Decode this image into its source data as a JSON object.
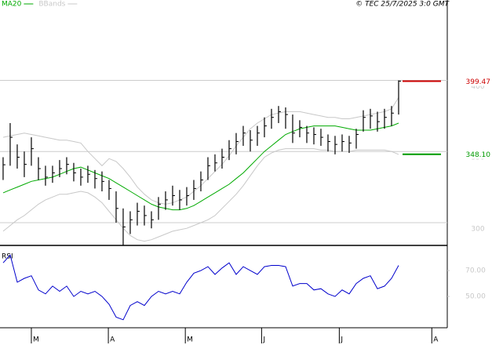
{
  "chart_data": [
    {
      "type": "ohlc",
      "source": "© TEC 25/7/2025 3:0 GMT",
      "xlim": [
        -0.44,
        62.89
      ],
      "ylim": [
        284,
        456.5
      ],
      "yticks": [
        300,
        350,
        400
      ],
      "grid": true,
      "ohlc": {
        "color": "#000000",
        "high": [
          346,
          370,
          355,
          350,
          360,
          346,
          340,
          340,
          344,
          346,
          342,
          338,
          340,
          337,
          336,
          330,
          322,
          310,
          308,
          314,
          312,
          308,
          318,
          322,
          326,
          323,
          325,
          330,
          336,
          346,
          348,
          352,
          358,
          363,
          368,
          365,
          368,
          374,
          380,
          382,
          381,
          376,
          372,
          368,
          367,
          366,
          362,
          361,
          362,
          361,
          366,
          379,
          380,
          378,
          380,
          382,
          400
        ],
        "low": [
          330,
          340,
          338,
          332,
          340,
          330,
          326,
          328,
          332,
          334,
          329,
          326,
          328,
          324,
          322,
          316,
          300,
          284,
          292,
          298,
          298,
          296,
          302,
          309,
          312,
          309,
          312,
          316,
          322,
          330,
          336,
          338,
          344,
          348,
          354,
          350,
          354,
          360,
          366,
          370,
          366,
          356,
          360,
          356,
          355,
          354,
          350,
          348,
          350,
          349,
          352,
          364,
          366,
          364,
          366,
          368,
          376
        ],
        "close": [
          340.7,
          360,
          346,
          341,
          352,
          338,
          332,
          335,
          338,
          341,
          335,
          332,
          334,
          331,
          329,
          324,
          310,
          297,
          302,
          308,
          305,
          302,
          313,
          316,
          319,
          316,
          319,
          324,
          330,
          340,
          342,
          346,
          352,
          357,
          363,
          358,
          363,
          368,
          374,
          378,
          376,
          363,
          367,
          363,
          362,
          360,
          357,
          355,
          357,
          356,
          362,
          374,
          375,
          371,
          374,
          377,
          399.47
        ]
      },
      "series": [
        {
          "name": "MA20",
          "color": "#00aa00",
          "values": [
            321,
            323,
            325,
            327,
            329,
            330,
            331,
            332,
            334,
            336,
            338,
            339,
            337,
            335,
            333,
            331,
            328,
            325,
            322,
            319,
            316,
            313,
            311,
            310,
            309,
            309,
            310,
            312,
            315,
            318,
            321,
            324,
            327,
            331,
            335,
            340,
            345,
            350,
            354,
            358,
            362,
            364,
            366,
            367,
            368,
            368,
            368,
            368,
            367,
            366,
            365,
            365,
            365,
            366,
            367,
            368,
            370
          ]
        },
        {
          "name": "BBands",
          "color": "#c8c8c8",
          "upper": [
            360,
            361,
            362,
            363,
            362,
            361,
            360,
            359,
            358,
            358,
            357,
            356,
            350,
            345,
            340,
            345,
            343,
            338,
            332,
            325,
            320,
            316,
            314,
            313,
            314,
            316,
            318,
            322,
            326,
            331,
            336,
            341,
            347,
            354,
            360,
            366,
            370,
            373,
            376,
            377,
            378,
            378,
            378,
            377,
            376,
            375,
            374,
            374,
            373,
            373,
            374,
            375,
            376,
            377,
            378,
            380,
            388
          ],
          "lower": [
            294,
            298,
            302,
            305,
            309,
            313,
            316,
            318,
            320,
            320,
            321,
            322,
            321,
            318,
            314,
            308,
            302,
            296,
            291,
            288,
            287,
            288,
            290,
            292,
            294,
            295,
            296,
            298,
            300,
            302,
            305,
            310,
            315,
            320,
            326,
            333,
            340,
            346,
            349,
            351,
            352,
            352,
            352,
            352,
            352,
            351,
            351,
            350,
            350,
            350,
            351,
            351,
            351,
            351,
            351,
            350,
            348
          ]
        }
      ],
      "levels": [
        {
          "value": 399.47,
          "label": "399.47",
          "color": "#cc0000"
        },
        {
          "value": 348.1,
          "label": "348.10",
          "color": "#009900"
        }
      ]
    },
    {
      "type": "line",
      "title": "RSI",
      "color": "#0000cc",
      "xlim": [
        -0.44,
        62.89
      ],
      "ylim": [
        25.8,
        86.4
      ],
      "yticks": [
        {
          "value": 70,
          "label": "70.00"
        },
        {
          "value": 50,
          "label": "50.00"
        }
      ],
      "xticks": [
        {
          "value": 4,
          "label": "M"
        },
        {
          "value": 14.9,
          "label": "A"
        },
        {
          "value": 25.8,
          "label": "M"
        },
        {
          "value": 36.6,
          "label": "J"
        },
        {
          "value": 47.6,
          "label": "J"
        },
        {
          "value": 60.7,
          "label": "A"
        }
      ],
      "values": [
        76,
        82,
        61,
        64,
        66,
        55,
        52,
        58,
        54,
        58,
        50,
        54,
        52,
        54,
        50,
        44,
        34,
        32,
        43,
        46,
        43,
        50,
        54,
        52,
        54,
        52,
        61,
        68,
        70,
        73,
        67,
        72,
        76,
        67,
        73,
        70,
        67,
        73,
        74,
        74,
        73,
        58,
        60,
        60,
        55,
        56,
        52,
        50,
        55,
        52,
        60,
        64,
        66,
        56,
        58,
        64,
        74
      ]
    }
  ]
}
